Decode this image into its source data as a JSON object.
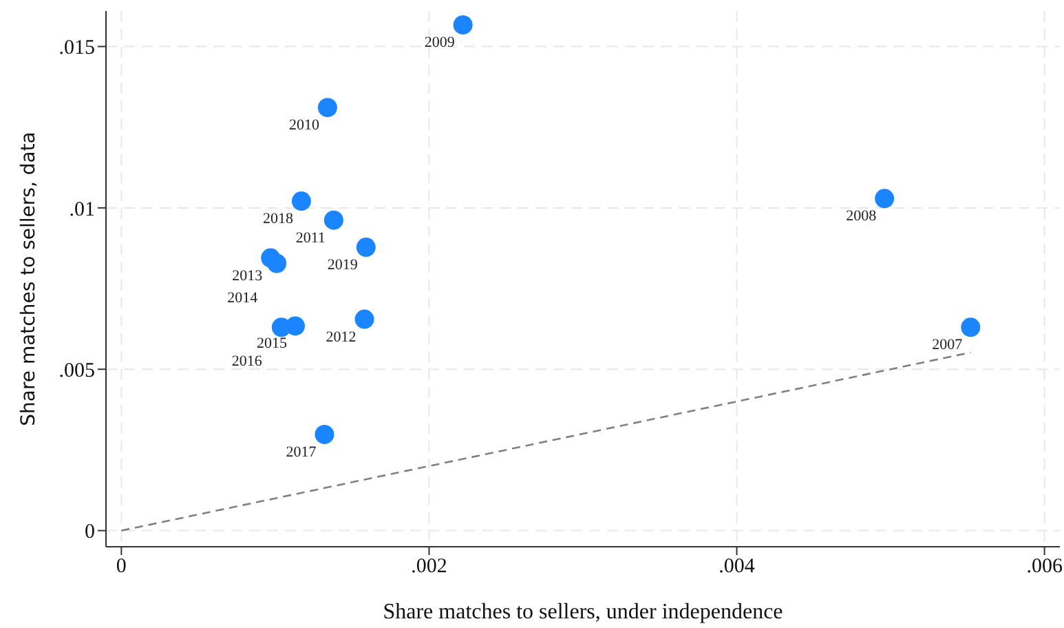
{
  "chart_data": {
    "type": "scatter",
    "xlabel": "Share matches to sellers, under independence",
    "ylabel": "Share matches to sellers, data",
    "xlim": [
      -0.0001,
      0.0061
    ],
    "xticks": [
      0,
      {
        "value": 0.002,
        "label": ".002"
      },
      {
        "value": 0.004,
        "label": ".004"
      },
      {
        "value": 0.006,
        "label": ".006"
      }
    ],
    "ylim": [
      -0.0005,
      0.0161
    ],
    "yticks": [
      0,
      {
        "value": 0.005,
        "label": ".005"
      },
      {
        "value": 0.01,
        "label": ".01"
      },
      {
        "value": 0.015,
        "label": ".015"
      }
    ],
    "grid": true,
    "marker": "circle",
    "series": [
      {
        "color": "#1a85ff",
        "x": [
          0.00552,
          0.00496,
          0.00222,
          0.00134,
          0.00138,
          0.00158,
          0.00097,
          0.00101,
          0.00113,
          0.00104,
          0.00132,
          0.00117,
          0.00159
        ],
        "values": [
          0.0063,
          0.01029,
          0.01567,
          0.01311,
          0.00962,
          0.00655,
          0.00845,
          0.00828,
          0.00634,
          0.0063,
          0.00298,
          0.01021,
          0.00878
        ]
      },
      {
        "type": "line",
        "color": "#808080",
        "line_style": "dashed",
        "marker": "none",
        "x": [
          0,
          0.00552
        ],
        "values": [
          0,
          0.00552
        ]
      }
    ],
    "annotations": [
      {
        "text": "2007",
        "x": 0.00552,
        "y": 0.0063
      },
      {
        "text": "2008",
        "x": 0.00496,
        "y": 0.01029
      },
      {
        "text": "2009",
        "x": 0.00222,
        "y": 0.01567
      },
      {
        "text": "2010",
        "x": 0.00134,
        "y": 0.01311
      },
      {
        "text": "2011",
        "x": 0.00138,
        "y": 0.00962
      },
      {
        "text": "2012",
        "x": 0.00158,
        "y": 0.00655
      },
      {
        "text": "2013",
        "x": 0.00097,
        "y": 0.00845
      },
      {
        "text": "2014",
        "x": 0.00101,
        "y": 0.00828
      },
      {
        "text": "2015",
        "x": 0.00113,
        "y": 0.00634
      },
      {
        "text": "2016",
        "x": 0.00104,
        "y": 0.0063
      },
      {
        "text": "2017",
        "x": 0.00132,
        "y": 0.00298
      },
      {
        "text": "2018",
        "x": 0.00117,
        "y": 0.01021
      },
      {
        "text": "2019",
        "x": 0.00159,
        "y": 0.00878
      }
    ]
  }
}
